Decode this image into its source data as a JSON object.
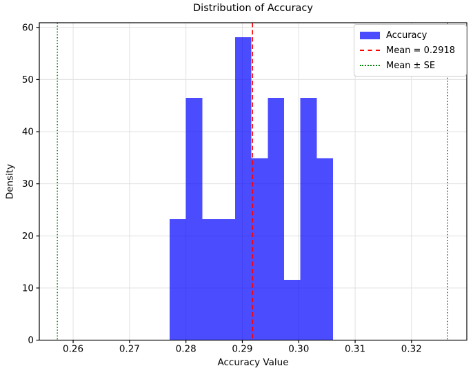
{
  "chart_data": {
    "type": "bar",
    "subtype": "histogram",
    "title": "Distribution of Accuracy",
    "xlabel": "Accuracy Value",
    "ylabel": "Density",
    "bin_edges": [
      0.2771,
      0.28,
      0.2829,
      0.2858,
      0.2887,
      0.2916,
      0.2945,
      0.2974,
      0.3003,
      0.3032,
      0.3061
    ],
    "densities": [
      23.2,
      46.5,
      23.2,
      23.2,
      58.1,
      34.9,
      46.5,
      11.6,
      46.5,
      34.9
    ],
    "bar_color": "#0000ff",
    "bar_alpha": 0.7,
    "xlim": [
      0.254,
      0.3298
    ],
    "ylim": [
      0,
      60.9
    ],
    "x_ticks": [
      0.26,
      0.27,
      0.28,
      0.29,
      0.3,
      0.31,
      0.32
    ],
    "x_tick_labels": [
      "0.26",
      "0.27",
      "0.28",
      "0.29",
      "0.30",
      "0.31",
      "0.32"
    ],
    "y_ticks": [
      0,
      10,
      20,
      30,
      40,
      50,
      60
    ],
    "y_tick_labels": [
      "0",
      "10",
      "20",
      "30",
      "40",
      "50",
      "60"
    ],
    "grid": true,
    "grid_color": "#e0e0e0",
    "annotations": {
      "mean_line": {
        "value": 0.2918,
        "color": "#ff0000",
        "linestyle": "dashed"
      },
      "se_lines": {
        "values": [
          0.2572,
          0.3264
        ],
        "color": "#008000",
        "linestyle": "dotted"
      }
    },
    "legend": {
      "position": "upper right",
      "entries": [
        {
          "label": "Accuracy",
          "swatch": "patch",
          "color": "#0000ff",
          "alpha": 0.7
        },
        {
          "label": "Mean = 0.2918",
          "swatch": "dashed-line",
          "color": "#ff0000"
        },
        {
          "label": "Mean ± SE",
          "swatch": "dotted-line",
          "color": "#008000"
        }
      ]
    }
  }
}
